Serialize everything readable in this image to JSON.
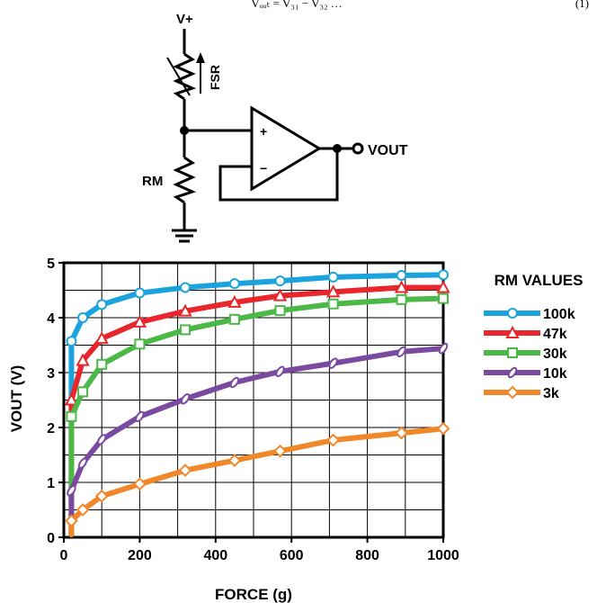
{
  "equation": {
    "text": "Vₒᵤₜ = V₃₁ − V₃₂ …",
    "number": "(1)"
  },
  "circuit": {
    "supply_label": "V+",
    "fsr_label": "FSR",
    "rm_label": "RM",
    "plus_label": "+",
    "minus_label": "−",
    "output_label": "VOUT"
  },
  "chart_data": {
    "type": "line",
    "xlabel": "FORCE (g)",
    "ylabel": "VOUT (V)",
    "xlim": [
      0,
      1000
    ],
    "ylim": [
      0,
      5
    ],
    "xticks": [
      0,
      200,
      400,
      600,
      800,
      1000
    ],
    "yticks": [
      0,
      1,
      2,
      3,
      4,
      5
    ],
    "grid": true,
    "legend_title": "RM VALUES",
    "legend_position": "right",
    "series": [
      {
        "name": "100k",
        "color": "#1aa3dd",
        "marker": "circle",
        "x": [
          20,
          50,
          100,
          200,
          320,
          450,
          570,
          710,
          890,
          1000
        ],
        "y": [
          3.57,
          4.0,
          4.24,
          4.45,
          4.55,
          4.62,
          4.67,
          4.74,
          4.77,
          4.78
        ]
      },
      {
        "name": "47k",
        "color": "#e8262b",
        "marker": "triangle",
        "x": [
          20,
          50,
          100,
          200,
          320,
          450,
          570,
          710,
          890,
          1000
        ],
        "y": [
          2.5,
          3.22,
          3.62,
          3.92,
          4.12,
          4.28,
          4.4,
          4.47,
          4.55,
          4.55
        ]
      },
      {
        "name": "30k",
        "color": "#4cb847",
        "marker": "square",
        "x": [
          20,
          50,
          100,
          200,
          320,
          450,
          570,
          710,
          890,
          1000
        ],
        "y": [
          2.2,
          2.65,
          3.15,
          3.52,
          3.78,
          3.97,
          4.13,
          4.25,
          4.33,
          4.35
        ]
      },
      {
        "name": "10k",
        "color": "#7a4aa0",
        "marker": "oval",
        "x": [
          20,
          50,
          100,
          200,
          320,
          450,
          570,
          710,
          890,
          1000
        ],
        "y": [
          0.85,
          1.35,
          1.78,
          2.2,
          2.52,
          2.82,
          3.02,
          3.17,
          3.38,
          3.44
        ]
      },
      {
        "name": "3k",
        "color": "#f0882a",
        "marker": "diamond",
        "x": [
          20,
          50,
          100,
          200,
          320,
          450,
          570,
          710,
          890,
          1000
        ],
        "y": [
          0.3,
          0.5,
          0.75,
          0.97,
          1.22,
          1.4,
          1.57,
          1.77,
          1.9,
          1.98
        ]
      }
    ]
  }
}
